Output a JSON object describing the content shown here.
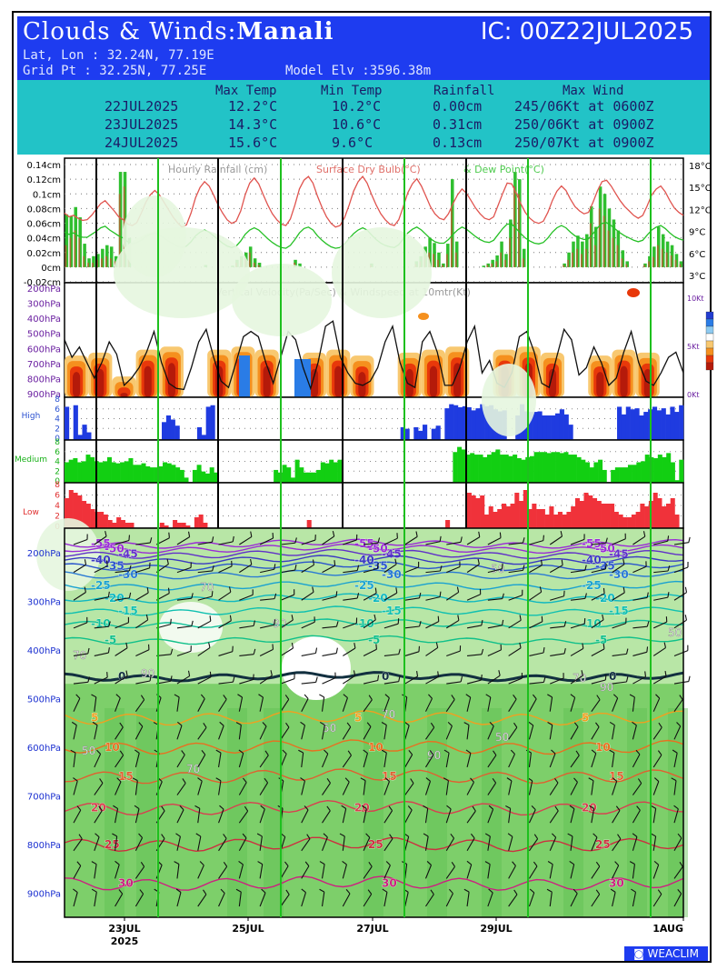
{
  "header": {
    "title_prefix": "Clouds & Winds:",
    "location": "Manali",
    "ic_label": "IC: 00Z22JUL2025",
    "latlon": "Lat, Lon : 32.24N, 77.19E",
    "gridpt": "Grid Pt  : 32.25N, 77.25E",
    "model_elv": "Model Elv :3596.38m",
    "bg_color": "#1e3cf0"
  },
  "summary": {
    "columns": [
      "Max Temp",
      "Min Temp",
      "Rainfall",
      "Max Wind"
    ],
    "rows": [
      {
        "date": "22JUL2025",
        "max": "12.2°C",
        "min": "10.2°C",
        "rain": "0.00cm",
        "wind": "245/06Kt at 0600Z"
      },
      {
        "date": "23JUL2025",
        "max": "14.3°C",
        "min": "10.6°C",
        "rain": "0.31cm",
        "wind": "250/06Kt at 0900Z"
      },
      {
        "date": "24JUL2025",
        "max": "15.6°C",
        "min": "9.6°C",
        "rain": "0.13cm",
        "wind": "250/07Kt at 0900Z"
      }
    ],
    "bg_color": "#22c3c7"
  },
  "chart_data": [
    {
      "type": "bar",
      "panel": "rainfall-temperature",
      "title": "Hourly Rainfall (cm)",
      "title_temp": "Surface Dry Bulb(°C)",
      "title_dew": "& Dew Point(°C)",
      "left_ticks": [
        "0.14cm",
        "0.12cm",
        "0.1cm",
        "0.08cm",
        "0.06cm",
        "0.04cm",
        "0.02cm",
        "0cm",
        "-0.02cm"
      ],
      "right_ticks": [
        "18°C",
        "15°C",
        "12°C",
        "9°C",
        "6°C",
        "3°C"
      ],
      "ylim": [
        -0.02,
        0.14
      ],
      "temp_ylim": [
        2,
        19
      ],
      "rain_total": [
        0.072,
        0.07,
        0.082,
        0.068,
        0.032,
        0.012,
        0.015,
        0.018,
        0.025,
        0.03,
        0.028,
        0.015,
        0.13,
        0.13,
        0.04,
        0.0,
        0.0,
        0.0,
        0.0,
        0.0,
        0.0,
        0.0,
        0.0,
        0.0,
        0.0,
        0.0,
        0.0,
        0.0,
        0.0,
        0.0,
        0.0,
        0.003,
        0.0,
        0.0,
        0.0,
        0.0,
        0.0,
        0.002,
        0.01,
        0.015,
        0.02,
        0.028,
        0.012,
        0.006,
        0.0,
        0.0,
        0.0,
        0.0,
        0.0,
        0.0,
        0.0,
        0.01,
        0.005,
        0.0,
        0.0,
        0.0,
        0.0,
        0.0,
        0.0,
        0.0,
        0.0,
        0.0,
        0.0,
        0.0,
        0.0,
        0.0,
        0.0,
        0.0,
        0.005,
        0.0,
        0.0,
        0.0,
        0.0,
        0.0,
        0.0,
        0.0,
        0.0,
        0.0,
        0.008,
        0.015,
        0.028,
        0.04,
        0.033,
        0.02,
        0.005,
        0.032,
        0.12,
        0.035,
        0.0,
        0.0,
        0.0,
        0.0,
        0.0,
        0.002,
        0.005,
        0.01,
        0.016,
        0.035,
        0.018,
        0.065,
        0.13,
        0.12,
        0.025,
        0.0,
        0.0,
        0.0,
        0.0,
        0.0,
        0.0,
        0.0,
        0.0,
        0.005,
        0.02,
        0.035,
        0.043,
        0.035,
        0.045,
        0.083,
        0.055,
        0.11,
        0.1,
        0.08,
        0.065,
        0.05,
        0.023,
        0.008,
        0.0,
        0.0,
        0.0,
        0.005,
        0.015,
        0.028,
        0.055,
        0.045,
        0.035,
        0.03,
        0.018,
        0.008
      ],
      "rain_dark": [
        0.03,
        0.04,
        0.05,
        0.04,
        0.015,
        0.006,
        0.006,
        0.01,
        0.012,
        0.015,
        0.012,
        0.008,
        0.1,
        0.11,
        0.02,
        0.0,
        0.0,
        0.0,
        0.0,
        0.0,
        0.0,
        0.0,
        0.0,
        0.0,
        0.0,
        0.0,
        0.0,
        0.0,
        0.0,
        0.0,
        0.0,
        0.0,
        0.0,
        0.0,
        0.0,
        0.0,
        0.0,
        0.0,
        0.006,
        0.01,
        0.012,
        0.02,
        0.006,
        0.003,
        0.0,
        0.0,
        0.0,
        0.0,
        0.0,
        0.0,
        0.0,
        0.006,
        0.0,
        0.0,
        0.0,
        0.0,
        0.0,
        0.0,
        0.0,
        0.0,
        0.0,
        0.0,
        0.0,
        0.0,
        0.0,
        0.0,
        0.0,
        0.0,
        0.003,
        0.0,
        0.0,
        0.0,
        0.0,
        0.0,
        0.0,
        0.0,
        0.0,
        0.0,
        0.004,
        0.008,
        0.015,
        0.02,
        0.018,
        0.01,
        0.003,
        0.018,
        0.08,
        0.02,
        0.0,
        0.0,
        0.0,
        0.0,
        0.0,
        0.0,
        0.003,
        0.005,
        0.008,
        0.02,
        0.01,
        0.04,
        0.11,
        0.1,
        0.012,
        0.0,
        0.0,
        0.0,
        0.0,
        0.0,
        0.0,
        0.0,
        0.0,
        0.003,
        0.01,
        0.02,
        0.025,
        0.018,
        0.025,
        0.06,
        0.03,
        0.08,
        0.07,
        0.05,
        0.04,
        0.03,
        0.012,
        0.004,
        0.0,
        0.0,
        0.0,
        0.003,
        0.008,
        0.014,
        0.03,
        0.025,
        0.02,
        0.016,
        0.01,
        0.004
      ],
      "temp": [
        11.5,
        11.0,
        11.2,
        10.8,
        10.5,
        10.6,
        11.2,
        12.0,
        12.8,
        13.2,
        12.5,
        11.8,
        11.0,
        10.6,
        10.0,
        9.8,
        10.2,
        11.5,
        13.0,
        14.0,
        14.6,
        14.0,
        13.0,
        12.0,
        11.0,
        10.2,
        9.6,
        9.9,
        11.5,
        13.6,
        15.0,
        15.8,
        15.2,
        14.0,
        12.6,
        11.5,
        10.6,
        10.1,
        10.4,
        11.8,
        14.0,
        15.6,
        16.3,
        15.5,
        14.0,
        12.6,
        11.4,
        10.6,
        10.0,
        9.8,
        10.7,
        12.6,
        14.8,
        16.0,
        16.5,
        15.6,
        13.8,
        12.3,
        11.0,
        10.1,
        9.6,
        9.8,
        10.9,
        12.6,
        14.5,
        15.8,
        16.5,
        15.6,
        14.0,
        12.6,
        11.4,
        10.6,
        10.0,
        9.8,
        10.6,
        12.4,
        14.3,
        15.5,
        16.2,
        15.2,
        13.8,
        12.4,
        11.4,
        10.8,
        10.6,
        11.4,
        12.8,
        14.0,
        14.8,
        14.2,
        13.2,
        12.2,
        11.4,
        10.8,
        10.6,
        11.0,
        12.6,
        14.2,
        15.6,
        15.5,
        14.2,
        12.8,
        11.6,
        10.8,
        10.3,
        10.1,
        10.4,
        11.6,
        13.2,
        14.5,
        15.2,
        14.6,
        13.4,
        12.4,
        11.8,
        11.4,
        11.6,
        13.0,
        14.6,
        15.8,
        16.0,
        15.2,
        14.2,
        13.2,
        12.4,
        11.8,
        11.2,
        10.8,
        11.2,
        12.5,
        14.0,
        14.8,
        15.2,
        14.4,
        13.2,
        12.2,
        11.6,
        11.2
      ],
      "dew": [
        8.9,
        8.6,
        8.8,
        8.4,
        8.2,
        8.2,
        8.6,
        9.0,
        9.5,
        9.7,
        9.2,
        8.8,
        8.4,
        8.1,
        7.6,
        7.3,
        7.5,
        7.8,
        8.3,
        8.6,
        8.8,
        8.5,
        8.1,
        7.7,
        7.3,
        7.0,
        6.8,
        7.0,
        7.6,
        8.4,
        8.9,
        9.2,
        8.9,
        8.4,
        7.9,
        7.4,
        7.0,
        6.8,
        7.0,
        7.7,
        8.6,
        9.2,
        9.5,
        9.2,
        8.6,
        8.0,
        7.5,
        7.1,
        6.8,
        6.7,
        7.1,
        7.9,
        8.8,
        9.4,
        9.6,
        9.2,
        8.4,
        7.8,
        7.3,
        6.9,
        6.7,
        6.8,
        7.3,
        8.0,
        8.7,
        9.2,
        9.5,
        9.2,
        8.5,
        7.9,
        7.4,
        7.1,
        6.9,
        6.8,
        7.2,
        8.0,
        8.8,
        9.3,
        9.6,
        9.2,
        8.6,
        8.0,
        7.6,
        7.4,
        7.4,
        7.9,
        8.6,
        9.2,
        9.6,
        9.3,
        8.8,
        8.3,
        7.9,
        7.6,
        7.5,
        7.8,
        8.6,
        9.4,
        10.0,
        10.0,
        9.4,
        8.7,
        8.1,
        7.7,
        7.4,
        7.3,
        7.5,
        8.1,
        8.9,
        9.5,
        9.8,
        9.5,
        8.9,
        8.4,
        8.1,
        7.9,
        8.0,
        8.7,
        9.5,
        10.1,
        10.2,
        9.8,
        9.3,
        8.8,
        8.4,
        8.1,
        7.8,
        7.6,
        7.8,
        8.5,
        9.2,
        9.6,
        9.8,
        9.4,
        8.8,
        8.3,
        8.0,
        7.8
      ],
      "colors": {
        "rain_total": "#2fbf2f",
        "rain_dark": "#a07030",
        "temp": "#e0544f",
        "dew": "#26c026"
      }
    },
    {
      "type": "heatmap",
      "panel": "vertical-velocity",
      "title": "Vertical Velocity(Pa/Sec) & Windspeed at 10mtr(Kt)",
      "left_ticks": [
        "200hPa",
        "300hPa",
        "400hPa",
        "500hPa",
        "600hPa",
        "700hPa",
        "800hPa",
        "900hPa"
      ],
      "right_ticks": [
        "10Kt",
        "5Kt",
        "0Kt"
      ],
      "windspeed_ylim": [
        0,
        10
      ],
      "windspeed_10m": [
        5.2,
        3.5,
        4.5,
        3.0,
        1.5,
        3.0,
        5.0,
        3.8,
        0.8,
        1.5,
        2.5,
        4.0,
        6.0,
        3.0,
        1.0,
        0.5,
        0.4,
        2.5,
        5.0,
        6.2,
        3.5,
        1.2,
        0.6,
        3.0,
        5.5,
        6.0,
        5.5,
        3.0,
        1.0,
        3.5,
        6.0,
        5.2,
        2.5,
        0.5,
        3.0,
        6.5,
        7.0,
        3.5,
        2.0,
        1.0,
        0.8,
        1.2,
        2.5,
        5.0,
        6.5,
        3.0,
        1.0,
        0.6,
        5.0,
        6.0,
        4.0,
        0.8,
        0.8,
        2.5,
        5.0,
        6.5,
        2.0,
        3.2,
        1.0,
        0.6,
        2.0,
        5.5,
        6.0,
        4.0,
        1.0,
        0.6,
        3.5,
        6.2,
        5.2,
        1.8,
        2.5,
        4.5,
        3.0,
        0.8,
        1.5,
        4.0,
        6.0,
        3.0,
        1.2,
        0.8,
        2.0,
        3.5,
        4.0,
        2.0
      ],
      "ascent_pattern": [
        0.7,
        0.75,
        0.35,
        0.8,
        0.85,
        0.2,
        0.8,
        0.85,
        0.8,
        0.2,
        0.75,
        0.8,
        0.7,
        0.15,
        0.75,
        0.8,
        0.85,
        0.2,
        0.8,
        0.85,
        0.75,
        0.25,
        0.7,
        0.8,
        0.75,
        0.15
      ],
      "colors": {
        "strong": "#b51a0a",
        "mid": "#e8380a",
        "weak": "#f5901e",
        "faint": "#f8c870",
        "descent": "#2a7ce6",
        "line": "#111111"
      }
    },
    {
      "type": "bar",
      "panel": "high-cloud",
      "label": "High",
      "ylim": [
        0,
        8
      ],
      "ticks": [
        "8",
        "6",
        "4",
        "2",
        "0"
      ],
      "values": [
        6.5,
        0.0,
        6.8,
        1.0,
        3.0,
        1.5,
        0,
        0,
        0,
        0,
        0,
        0,
        0,
        0,
        0,
        0,
        0,
        0,
        0,
        0,
        0,
        0,
        3.5,
        4.8,
        4.0,
        2.8,
        0,
        0,
        0,
        0,
        2.5,
        1.0,
        6.5,
        6.8,
        0,
        0,
        0,
        0,
        0,
        0,
        0,
        0,
        0,
        0,
        0,
        0,
        0,
        0,
        0,
        0,
        0,
        0,
        0,
        0,
        0,
        0,
        0,
        0,
        0,
        0,
        0,
        0,
        0,
        0,
        0,
        0,
        0,
        0,
        0,
        0,
        0,
        0,
        0,
        0,
        0,
        0,
        2.5,
        2.2,
        0,
        2.5,
        1.8,
        3.0,
        0,
        2.2,
        2.8,
        0,
        6.2,
        7.0,
        6.8,
        6.4,
        6.6,
        6.4,
        5.8,
        6.2,
        7.0,
        6.6,
        6.8,
        6.0,
        5.6,
        5.8,
        0,
        0,
        4.8,
        7.0,
        5.6,
        5.5,
        5.5,
        5.6,
        4.8,
        4.8,
        4.8,
        5.2,
        6.0,
        5.0,
        3.0,
        0,
        0,
        0,
        0,
        0,
        0,
        0,
        0,
        0,
        0,
        6.5,
        5.0,
        6.5,
        6.0,
        6.2,
        4.8,
        5.5,
        6.0,
        6.5,
        5.8,
        6.2,
        5.0,
        6.5,
        5.5,
        6.8
      ],
      "color": "#1f3be0"
    },
    {
      "type": "bar",
      "panel": "medium-cloud",
      "label": "Medium",
      "ylim": [
        0,
        8
      ],
      "ticks": [
        "8",
        "6",
        "4",
        "2",
        "0"
      ],
      "values": [
        4.0,
        4.5,
        4.8,
        4.0,
        4.2,
        5.5,
        5.0,
        4.2,
        4.0,
        4.2,
        5.0,
        4.0,
        3.8,
        4.0,
        4.2,
        4.8,
        3.5,
        3.5,
        3.8,
        3.2,
        3.0,
        3.0,
        3.2,
        4.0,
        3.8,
        3.5,
        3.0,
        2.5,
        1.0,
        0,
        2.5,
        3.5,
        2.2,
        1.8,
        3.0,
        2.0,
        0,
        0,
        0,
        0,
        0,
        0,
        0,
        0,
        0,
        0,
        0,
        0,
        0,
        2.5,
        2.0,
        3.5,
        3.0,
        1.0,
        4.5,
        3.0,
        2.0,
        2.0,
        2.0,
        2.5,
        4.0,
        3.8,
        4.5,
        4.0,
        4.5,
        0,
        0,
        0,
        0,
        0,
        0,
        0,
        0,
        0,
        0,
        0,
        0,
        0,
        0,
        0,
        0,
        0,
        0,
        0,
        0,
        0,
        0,
        0,
        0,
        0,
        0,
        6.0,
        7.0,
        6.5,
        5.5,
        5.8,
        5.5,
        5.5,
        5.0,
        5.5,
        6.0,
        6.5,
        5.5,
        5.5,
        5.2,
        5.5,
        4.8,
        4.5,
        5.0,
        5.2,
        6.0,
        6.0,
        6.0,
        5.8,
        6.0,
        6.0,
        5.8,
        6.0,
        5.5,
        5.5,
        5.0,
        4.5,
        4.0,
        3.0,
        4.0,
        4.5,
        2.5,
        0.0,
        2.5,
        3.0,
        3.0,
        3.0,
        3.5,
        3.5,
        4.0,
        4.2,
        5.5,
        5.0,
        4.8,
        5.5,
        5.0,
        5.8,
        4.0,
        0.5,
        4.5
      ],
      "color": "#12cf12"
    },
    {
      "type": "bar",
      "panel": "low-cloud",
      "label": "Low",
      "ylim": [
        0,
        8
      ],
      "ticks": [
        "8",
        "6",
        "4",
        "2",
        "0"
      ],
      "values": [
        5.5,
        7.0,
        6.5,
        6.0,
        5.0,
        4.5,
        3.5,
        3.0,
        3.0,
        2.5,
        1.5,
        1.0,
        2.0,
        1.5,
        1.0,
        1.0,
        0,
        0,
        0,
        0,
        0,
        0,
        1.0,
        0.5,
        0,
        1.5,
        1.0,
        1.0,
        0.5,
        0,
        2.0,
        2.5,
        1.0,
        0,
        0,
        0,
        0,
        0,
        0,
        0,
        0,
        0,
        0,
        0,
        0,
        0,
        0,
        0,
        0,
        0,
        0,
        0,
        0,
        0,
        0,
        0,
        1.5,
        0,
        0,
        0,
        0,
        0,
        0,
        0,
        0,
        0,
        0,
        0,
        0,
        0,
        0,
        0,
        0,
        0,
        0,
        0,
        0,
        0,
        0,
        0,
        0,
        0,
        0,
        0,
        0,
        0,
        0,
        0,
        1.5,
        0,
        0,
        0,
        0,
        6.5,
        6.0,
        5.5,
        6.0,
        2.5,
        4.0,
        3.0,
        3.5,
        4.5,
        4.0,
        4.5,
        6.5,
        5.0,
        7.0,
        3.5,
        4.5,
        3.5,
        3.5,
        2.5,
        4.0,
        2.5,
        3.0,
        2.5,
        3.0,
        4.0,
        5.5,
        5.0,
        6.5,
        6.0,
        5.5,
        5.0,
        4.5,
        4.5,
        4.5,
        3.0,
        2.5,
        2.0,
        2.0,
        2.5,
        3.0,
        4.5,
        4.0,
        5.0,
        6.5,
        5.5,
        4.0,
        4.5,
        5.5,
        2.5,
        0
      ],
      "color": "#f0323a"
    },
    {
      "type": "heatmap",
      "panel": "humidity-temperature-wind",
      "left_ticks": [
        "200hPa",
        "300hPa",
        "400hPa",
        "500hPa",
        "600hPa",
        "700hPa",
        "800hPa",
        "900hPa"
      ],
      "x_ticks": [
        "23JUL\n2025",
        "25JUL",
        "27JUL",
        "29JUL",
        "1AUG"
      ],
      "isotherms": [
        {
          "label": "-55",
          "p": 182,
          "color": "#9a2bd6"
        },
        {
          "label": "-50",
          "p": 192,
          "color": "#9a2bd6"
        },
        {
          "label": "-45",
          "p": 203,
          "color": "#6030c8"
        },
        {
          "label": "-40",
          "p": 215,
          "color": "#3a39c2"
        },
        {
          "label": "-35",
          "p": 228,
          "color": "#2a55cc"
        },
        {
          "label": "-30",
          "p": 245,
          "color": "#2a7ad4"
        },
        {
          "label": "-25",
          "p": 268,
          "color": "#1aa2d0"
        },
        {
          "label": "-20",
          "p": 294,
          "color": "#10b8c0"
        },
        {
          "label": "-15",
          "p": 320,
          "color": "#10c0b0"
        },
        {
          "label": "-10",
          "p": 346,
          "color": "#10c09a"
        },
        {
          "label": "-5",
          "p": 380,
          "color": "#10c08a"
        },
        {
          "label": "0",
          "p": 455,
          "color": "#123040"
        },
        {
          "label": "5",
          "p": 540,
          "color": "#f0a020"
        },
        {
          "label": "10",
          "p": 600,
          "color": "#e87020"
        },
        {
          "label": "15",
          "p": 660,
          "color": "#e06030"
        },
        {
          "label": "20",
          "p": 725,
          "color": "#d84050"
        },
        {
          "label": "25",
          "p": 800,
          "color": "#cc3040"
        },
        {
          "label": "30",
          "p": 880,
          "color": "#cc2080"
        }
      ],
      "rh_labels": [
        "50",
        "70",
        "90"
      ],
      "colors": {
        "moist": "#7dcf6a",
        "mid": "#b8e6a6",
        "dry": "#ffffff"
      }
    }
  ],
  "footer": {
    "brand": "WEACLIM"
  }
}
